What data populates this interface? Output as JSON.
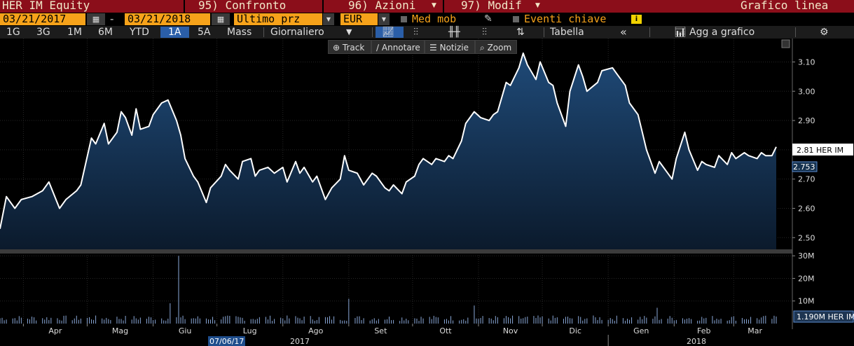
{
  "header": {
    "security": "HER IM Equity",
    "compare": "95) Confronto",
    "actions": "96) Azioni",
    "modify": "97) Modif",
    "title": "Grafico linea"
  },
  "controls": {
    "start_date": "03/21/2017",
    "dash": "-",
    "end_date": "03/21/2018",
    "price_field": "Ultimo prz",
    "currency": "EUR",
    "moving_avg": "Med mob",
    "key_events": "Eventi chiave"
  },
  "periods": [
    "1G",
    "3G",
    "1M",
    "6M",
    "YTD",
    "1A",
    "5A",
    "Mass"
  ],
  "selected_period": "1A",
  "frequency": "Giornaliero",
  "table_label": "Tabella",
  "collapse_label": "«",
  "add_to_chart": "Agg a grafico",
  "tools": {
    "track": "Track",
    "annotate": "Annotare",
    "news": "Notizie",
    "zoom": "Zoom"
  },
  "colors": {
    "line": "#ffffff",
    "area_top": "#1f4a78",
    "area_bottom": "#0b1a2c",
    "accent": "#f6a21a",
    "topbar": "#8b0e1a"
  },
  "chart_data": {
    "type": "area",
    "price_axis": {
      "ticks": [
        2.5,
        2.6,
        2.7,
        2.8,
        2.9,
        3.0,
        3.1
      ],
      "tick_labels": [
        "2.50",
        "2.60",
        "2.70",
        "2.80",
        "2.90",
        "3.00",
        "3.10"
      ],
      "ylim": [
        2.46,
        3.18
      ]
    },
    "volume_axis": {
      "ticks": [
        10,
        20,
        30
      ],
      "tick_labels": [
        "10M",
        "20M",
        "30M"
      ],
      "ylim": [
        0,
        31
      ]
    },
    "x_months": [
      "Apr",
      "Mag",
      "Giu",
      "Lug",
      "Ago",
      "Set",
      "Ott",
      "Nov",
      "Dic",
      "Gen",
      "Feb",
      "Mar"
    ],
    "x_years": [
      "2017",
      "2018"
    ],
    "cursor_date": "07/06/17",
    "last_price_label": "2.81 HER IM",
    "secondary_label": "2.753",
    "volume_label": "1.190M HER IM",
    "series": [
      {
        "name": "HER IM",
        "points": [
          [
            "2017-03-21",
            2.53
          ],
          [
            "2017-03-24",
            2.64
          ],
          [
            "2017-03-28",
            2.6
          ],
          [
            "2017-03-31",
            2.63
          ],
          [
            "2017-04-05",
            2.64
          ],
          [
            "2017-04-10",
            2.66
          ],
          [
            "2017-04-13",
            2.69
          ],
          [
            "2017-04-18",
            2.6
          ],
          [
            "2017-04-21",
            2.63
          ],
          [
            "2017-04-26",
            2.66
          ],
          [
            "2017-04-28",
            2.68
          ],
          [
            "2017-05-03",
            2.84
          ],
          [
            "2017-05-05",
            2.82
          ],
          [
            "2017-05-09",
            2.89
          ],
          [
            "2017-05-11",
            2.82
          ],
          [
            "2017-05-15",
            2.86
          ],
          [
            "2017-05-17",
            2.93
          ],
          [
            "2017-05-19",
            2.91
          ],
          [
            "2017-05-22",
            2.85
          ],
          [
            "2017-05-24",
            2.94
          ],
          [
            "2017-05-26",
            2.87
          ],
          [
            "2017-05-30",
            2.88
          ],
          [
            "2017-06-01",
            2.92
          ],
          [
            "2017-06-05",
            2.96
          ],
          [
            "2017-06-08",
            2.97
          ],
          [
            "2017-06-12",
            2.9
          ],
          [
            "2017-06-14",
            2.85
          ],
          [
            "2017-06-16",
            2.77
          ],
          [
            "2017-06-20",
            2.71
          ],
          [
            "2017-06-22",
            2.69
          ],
          [
            "2017-06-26",
            2.62
          ],
          [
            "2017-06-28",
            2.67
          ],
          [
            "2017-07-03",
            2.71
          ],
          [
            "2017-07-05",
            2.75
          ],
          [
            "2017-07-07",
            2.73
          ],
          [
            "2017-07-11",
            2.7
          ],
          [
            "2017-07-13",
            2.76
          ],
          [
            "2017-07-17",
            2.77
          ],
          [
            "2017-07-19",
            2.71
          ],
          [
            "2017-07-21",
            2.73
          ],
          [
            "2017-07-25",
            2.74
          ],
          [
            "2017-07-28",
            2.72
          ],
          [
            "2017-08-01",
            2.74
          ],
          [
            "2017-08-03",
            2.69
          ],
          [
            "2017-08-07",
            2.76
          ],
          [
            "2017-08-09",
            2.72
          ],
          [
            "2017-08-11",
            2.74
          ],
          [
            "2017-08-15",
            2.69
          ],
          [
            "2017-08-17",
            2.71
          ],
          [
            "2017-08-21",
            2.63
          ],
          [
            "2017-08-24",
            2.67
          ],
          [
            "2017-08-28",
            2.7
          ],
          [
            "2017-08-30",
            2.78
          ],
          [
            "2017-09-01",
            2.73
          ],
          [
            "2017-09-05",
            2.72
          ],
          [
            "2017-09-08",
            2.68
          ],
          [
            "2017-09-12",
            2.72
          ],
          [
            "2017-09-14",
            2.71
          ],
          [
            "2017-09-18",
            2.67
          ],
          [
            "2017-09-20",
            2.66
          ],
          [
            "2017-09-22",
            2.68
          ],
          [
            "2017-09-26",
            2.65
          ],
          [
            "2017-09-28",
            2.69
          ],
          [
            "2017-10-02",
            2.71
          ],
          [
            "2017-10-04",
            2.75
          ],
          [
            "2017-10-06",
            2.77
          ],
          [
            "2017-10-10",
            2.75
          ],
          [
            "2017-10-12",
            2.77
          ],
          [
            "2017-10-16",
            2.76
          ],
          [
            "2017-10-18",
            2.78
          ],
          [
            "2017-10-20",
            2.77
          ],
          [
            "2017-10-24",
            2.83
          ],
          [
            "2017-10-26",
            2.89
          ],
          [
            "2017-10-30",
            2.93
          ],
          [
            "2017-11-02",
            2.91
          ],
          [
            "2017-11-06",
            2.9
          ],
          [
            "2017-11-08",
            2.92
          ],
          [
            "2017-11-10",
            2.93
          ],
          [
            "2017-11-14",
            3.03
          ],
          [
            "2017-11-16",
            3.02
          ],
          [
            "2017-11-20",
            3.08
          ],
          [
            "2017-11-22",
            3.13
          ],
          [
            "2017-11-24",
            3.09
          ],
          [
            "2017-11-28",
            3.04
          ],
          [
            "2017-11-30",
            3.1
          ],
          [
            "2017-12-04",
            3.03
          ],
          [
            "2017-12-06",
            3.02
          ],
          [
            "2017-12-08",
            2.96
          ],
          [
            "2017-12-12",
            2.88
          ],
          [
            "2017-12-14",
            3.0
          ],
          [
            "2017-12-18",
            3.09
          ],
          [
            "2017-12-20",
            3.05
          ],
          [
            "2017-12-22",
            3.0
          ],
          [
            "2017-12-27",
            3.03
          ],
          [
            "2017-12-29",
            3.07
          ],
          [
            "2018-01-03",
            3.08
          ],
          [
            "2018-01-05",
            3.06
          ],
          [
            "2018-01-09",
            3.02
          ],
          [
            "2018-01-11",
            2.96
          ],
          [
            "2018-01-15",
            2.92
          ],
          [
            "2018-01-17",
            2.86
          ],
          [
            "2018-01-19",
            2.8
          ],
          [
            "2018-01-23",
            2.72
          ],
          [
            "2018-01-25",
            2.76
          ],
          [
            "2018-01-29",
            2.72
          ],
          [
            "2018-01-31",
            2.7
          ],
          [
            "2018-02-02",
            2.77
          ],
          [
            "2018-02-06",
            2.86
          ],
          [
            "2018-02-08",
            2.8
          ],
          [
            "2018-02-12",
            2.73
          ],
          [
            "2018-02-14",
            2.76
          ],
          [
            "2018-02-16",
            2.75
          ],
          [
            "2018-02-20",
            2.74
          ],
          [
            "2018-02-22",
            2.78
          ],
          [
            "2018-02-26",
            2.75
          ],
          [
            "2018-02-28",
            2.79
          ],
          [
            "2018-03-02",
            2.77
          ],
          [
            "2018-03-06",
            2.79
          ],
          [
            "2018-03-08",
            2.78
          ],
          [
            "2018-03-12",
            2.77
          ],
          [
            "2018-03-14",
            2.79
          ],
          [
            "2018-03-16",
            2.78
          ],
          [
            "2018-03-19",
            2.78
          ],
          [
            "2018-03-21",
            2.81
          ]
        ]
      }
    ],
    "volume_spikes": [
      [
        "2017-06-09",
        9
      ],
      [
        "2017-06-13",
        30
      ],
      [
        "2017-09-01",
        11
      ],
      [
        "2017-10-30",
        8
      ],
      [
        "2018-01-24",
        7
      ]
    ]
  }
}
